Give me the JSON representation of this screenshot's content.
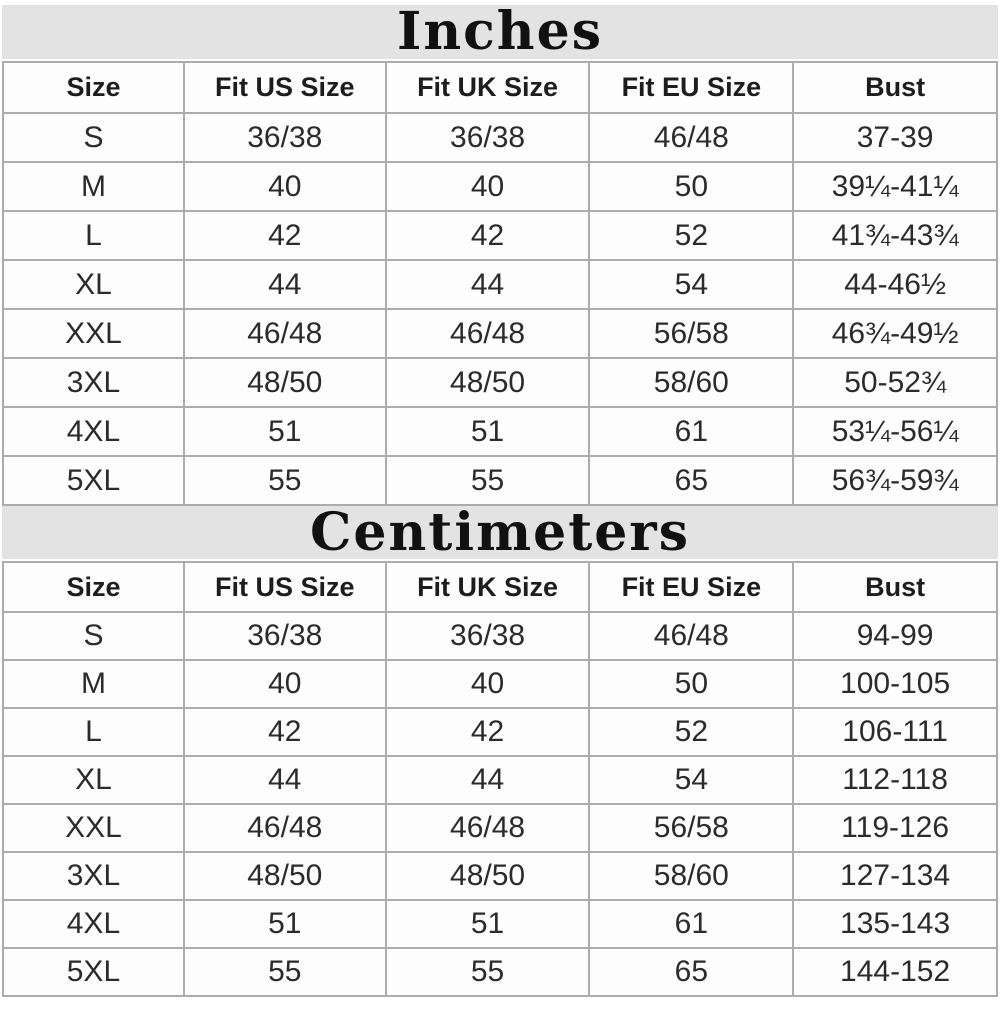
{
  "colors": {
    "title_band_bg": "#e3e3e3",
    "table_border": "#acacac",
    "cell_bg": "#fdfdfd",
    "text": "#2b2b2b",
    "page_bg": "#ffffff"
  },
  "chart_data": [
    {
      "type": "table",
      "title": "Inches",
      "columns": [
        "Size",
        "Fit US Size",
        "Fit UK Size",
        "Fit EU Size",
        "Bust"
      ],
      "rows": [
        [
          "S",
          "36/38",
          "36/38",
          "46/48",
          "37-39"
        ],
        [
          "M",
          "40",
          "40",
          "50",
          "39¼-41¼"
        ],
        [
          "L",
          "42",
          "42",
          "52",
          "41¾-43¾"
        ],
        [
          "XL",
          "44",
          "44",
          "54",
          "44-46½"
        ],
        [
          "XXL",
          "46/48",
          "46/48",
          "56/58",
          "46¾-49½"
        ],
        [
          "3XL",
          "48/50",
          "48/50",
          "58/60",
          "50-52¾"
        ],
        [
          "4XL",
          "51",
          "51",
          "61",
          "53¼-56¼"
        ],
        [
          "5XL",
          "55",
          "55",
          "65",
          "56¾-59¾"
        ]
      ]
    },
    {
      "type": "table",
      "title": "Centimeters",
      "columns": [
        "Size",
        "Fit US Size",
        "Fit UK Size",
        "Fit EU Size",
        "Bust"
      ],
      "rows": [
        [
          "S",
          "36/38",
          "36/38",
          "46/48",
          "94-99"
        ],
        [
          "M",
          "40",
          "40",
          "50",
          "100-105"
        ],
        [
          "L",
          "42",
          "42",
          "52",
          "106-111"
        ],
        [
          "XL",
          "44",
          "44",
          "54",
          "112-118"
        ],
        [
          "XXL",
          "46/48",
          "46/48",
          "56/58",
          "119-126"
        ],
        [
          "3XL",
          "48/50",
          "48/50",
          "58/60",
          "127-134"
        ],
        [
          "4XL",
          "51",
          "51",
          "61",
          "135-143"
        ],
        [
          "5XL",
          "55",
          "55",
          "65",
          "144-152"
        ]
      ]
    }
  ]
}
